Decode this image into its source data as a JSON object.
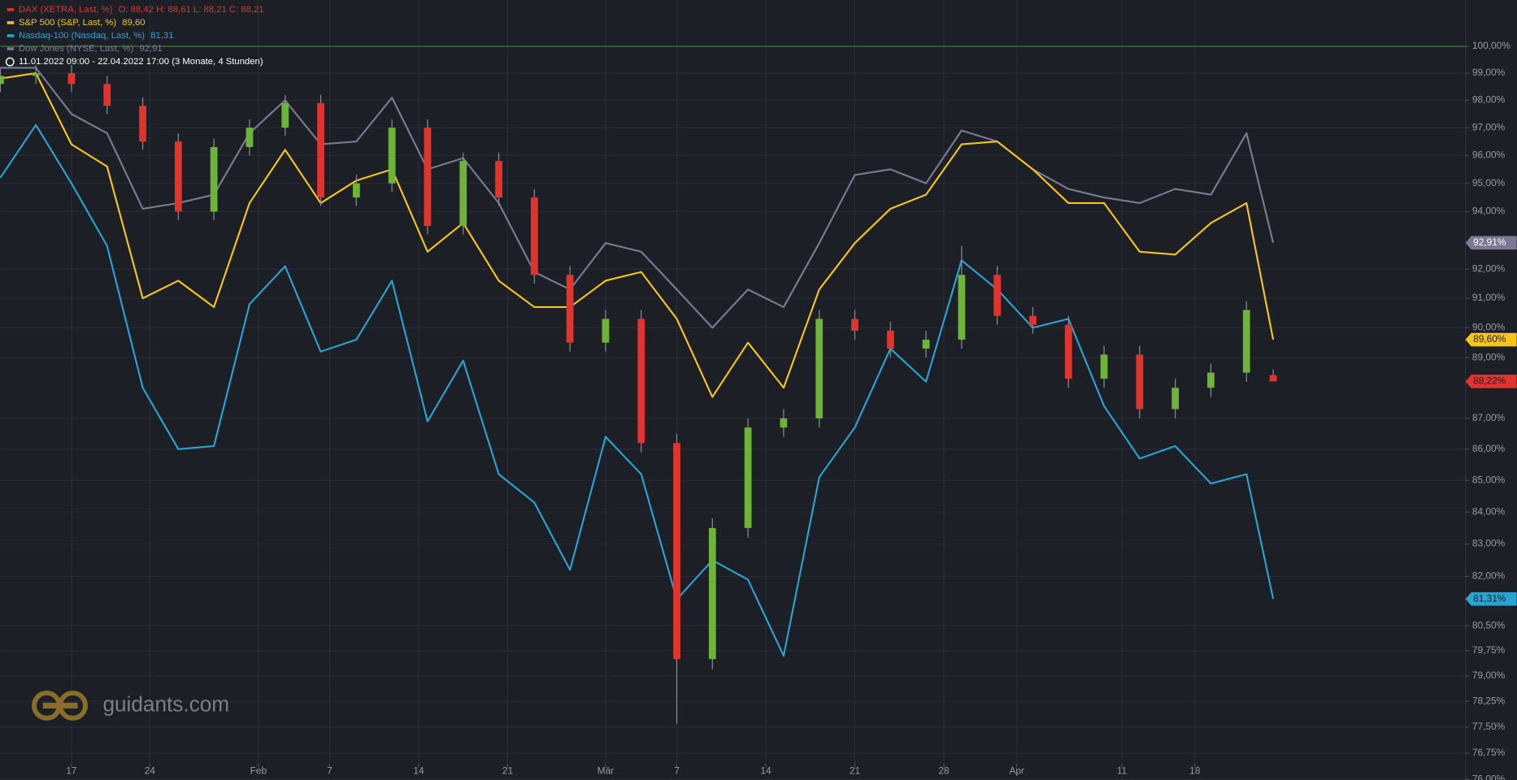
{
  "chart_data": {
    "type": "line",
    "period": "11.01.2022 09:00 - 22.04.2022 17:00   (3 Monate, 4 Stunden)",
    "watermark": "guidants.com",
    "log_scale": true,
    "grid": true,
    "ref_line": 100,
    "ref_color": "#3c8a3c",
    "xlim": [
      0,
      82.3
    ],
    "ylim": [
      75.9,
      101.75
    ],
    "xticks": [
      {
        "value": 4.0,
        "label": "17"
      },
      {
        "value": 8.4,
        "label": "24"
      },
      {
        "value": 14.5,
        "label": "Feb"
      },
      {
        "value": 18.5,
        "label": "7"
      },
      {
        "value": 23.5,
        "label": "14"
      },
      {
        "value": 28.5,
        "label": "21"
      },
      {
        "value": 34.0,
        "label": "Mär"
      },
      {
        "value": 38.0,
        "label": "7"
      },
      {
        "value": 43.0,
        "label": "14"
      },
      {
        "value": 48.0,
        "label": "21"
      },
      {
        "value": 53.0,
        "label": "28"
      },
      {
        "value": 57.1,
        "label": "Apr"
      },
      {
        "value": 63.0,
        "label": "11"
      },
      {
        "value": 67.1,
        "label": "18"
      }
    ],
    "yticks": [
      {
        "value": 100,
        "label": "100,00%"
      },
      {
        "value": 99,
        "label": "99,00%"
      },
      {
        "value": 98,
        "label": "98,00%"
      },
      {
        "value": 97,
        "label": "97,00%"
      },
      {
        "value": 96,
        "label": "96,00%"
      },
      {
        "value": 95,
        "label": "95,00%"
      },
      {
        "value": 94,
        "label": "94,00%"
      },
      {
        "value": 92,
        "label": "92,00%"
      },
      {
        "value": 91,
        "label": "91,00%"
      },
      {
        "value": 90,
        "label": "90,00%"
      },
      {
        "value": 89,
        "label": "89,00%"
      },
      {
        "value": 87,
        "label": "87,00%"
      },
      {
        "value": 86,
        "label": "86,00%"
      },
      {
        "value": 85,
        "label": "85,00%"
      },
      {
        "value": 84,
        "label": "84,00%"
      },
      {
        "value": 83,
        "label": "83,00%"
      },
      {
        "value": 82,
        "label": "82,00%"
      },
      {
        "value": 80.5,
        "label": "80,50%"
      },
      {
        "value": 79.75,
        "label": "79,75%"
      },
      {
        "value": 79,
        "label": "79,00%"
      },
      {
        "value": 78.25,
        "label": "78,25%"
      },
      {
        "value": 77.5,
        "label": "77,50%"
      },
      {
        "value": 76.75,
        "label": "76,75%"
      },
      {
        "value": 76,
        "label": "76,00%"
      }
    ],
    "x": [
      0,
      2,
      4,
      6,
      8,
      10,
      12,
      14,
      16,
      18,
      20,
      22,
      24,
      26,
      28,
      30,
      32,
      34,
      36,
      38,
      40,
      42,
      44,
      46,
      48,
      50,
      52,
      54,
      56,
      58,
      60,
      62,
      64,
      66,
      68,
      70,
      71.5
    ],
    "series": [
      {
        "name": "Nasdaq-100 (Nasdaq, Last, %)",
        "type": "line",
        "color": "#29a3d1",
        "legend_values": "81,31",
        "last_label": "81,31%",
        "values": [
          95.2,
          97.1,
          95.0,
          92.8,
          88.0,
          86.0,
          86.1,
          90.8,
          92.1,
          89.2,
          89.6,
          91.6,
          86.9,
          88.9,
          85.2,
          84.3,
          82.2,
          86.4,
          85.2,
          81.3,
          82.5,
          81.9,
          79.6,
          85.1,
          86.7,
          89.3,
          88.2,
          92.3,
          91.3,
          90.0,
          90.3,
          87.4,
          85.7,
          86.1,
          84.9,
          85.2,
          81.31
        ]
      },
      {
        "name": "Dow Jones (NYSE, Last, %)",
        "type": "line",
        "color": "#7d7894",
        "legend_values": "92,91",
        "last_label": "92,91%",
        "values": [
          99.2,
          99.2,
          97.5,
          96.8,
          94.1,
          94.3,
          94.6,
          96.8,
          98.0,
          96.4,
          96.5,
          98.1,
          95.5,
          95.9,
          94.3,
          91.9,
          91.3,
          92.9,
          92.6,
          91.3,
          90.0,
          91.3,
          90.7,
          92.9,
          95.3,
          95.5,
          95.0,
          96.9,
          96.5,
          95.5,
          94.8,
          94.5,
          94.3,
          94.8,
          94.6,
          96.8,
          92.91
        ]
      },
      {
        "name": "S&P 500 (S&P, Last, %)",
        "type": "line",
        "color": "#f5c518",
        "legend_values": "89,60",
        "last_label": "89,60%",
        "values": [
          98.8,
          99.0,
          96.4,
          95.6,
          91.0,
          91.6,
          90.7,
          94.3,
          96.2,
          94.3,
          95.1,
          95.5,
          92.6,
          93.6,
          91.6,
          90.7,
          90.7,
          91.6,
          91.9,
          90.3,
          87.7,
          89.5,
          88.0,
          91.3,
          92.9,
          94.1,
          94.6,
          96.4,
          96.5,
          95.5,
          94.3,
          94.3,
          92.6,
          92.5,
          93.6,
          94.3,
          89.6
        ]
      },
      {
        "name": "DAX (XETRA, Last, %)",
        "type": "candlestick",
        "color": "#e0342f",
        "up_color": "#6fb33a",
        "legend_values": "O: 88,42  H: 88,61  L: 88,21  C: 88,21",
        "last_label": "88,22%",
        "open": [
          98.6,
          98.9,
          99.0,
          98.6,
          97.8,
          96.5,
          94.0,
          96.3,
          97.0,
          97.9,
          94.5,
          95.0,
          97.0,
          93.5,
          95.8,
          94.5,
          91.8,
          89.5,
          90.3,
          86.2,
          79.5,
          83.5,
          86.7,
          87.0,
          90.3,
          89.9,
          89.3,
          89.6,
          91.8,
          90.4,
          90.1,
          88.3,
          89.1,
          87.3,
          88.0,
          88.5,
          88.42
        ],
        "high": [
          99.2,
          99.3,
          99.3,
          98.9,
          98.1,
          96.8,
          96.6,
          97.3,
          98.2,
          98.2,
          95.3,
          97.3,
          97.3,
          96.1,
          96.1,
          94.8,
          92.1,
          90.6,
          90.6,
          86.5,
          83.8,
          87.0,
          87.3,
          90.6,
          90.6,
          90.2,
          89.9,
          92.8,
          92.1,
          90.7,
          90.4,
          89.4,
          89.4,
          88.3,
          88.8,
          90.9,
          88.61
        ],
        "low": [
          98.3,
          98.6,
          98.3,
          97.5,
          96.2,
          93.7,
          93.7,
          96.0,
          96.7,
          94.2,
          94.2,
          94.7,
          93.2,
          93.2,
          94.2,
          91.5,
          89.2,
          89.2,
          85.9,
          77.6,
          79.2,
          83.2,
          86.4,
          86.7,
          89.6,
          89.0,
          89.0,
          89.3,
          90.1,
          89.8,
          88.0,
          88.0,
          87.0,
          87.0,
          87.7,
          88.2,
          88.21
        ],
        "close": [
          98.9,
          99.0,
          98.6,
          97.8,
          96.5,
          94.0,
          96.3,
          97.0,
          97.9,
          94.5,
          95.0,
          97.0,
          93.5,
          95.8,
          94.5,
          91.8,
          89.5,
          90.3,
          86.2,
          79.5,
          83.5,
          86.7,
          87.0,
          90.3,
          89.9,
          89.3,
          89.6,
          91.8,
          90.4,
          90.1,
          88.3,
          89.1,
          87.3,
          88.0,
          88.5,
          90.6,
          88.21
        ]
      }
    ]
  }
}
